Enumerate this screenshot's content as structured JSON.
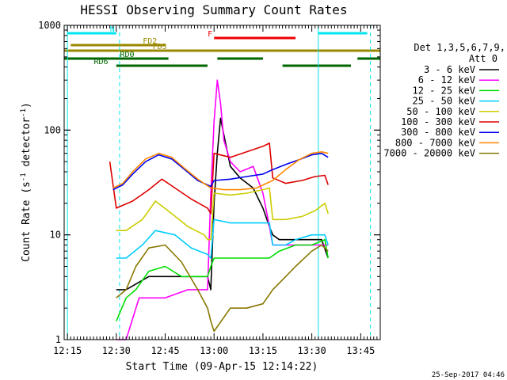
{
  "chart_data": {
    "type": "line",
    "title": "HESSI Observing Summary Count Rates",
    "xlabel": "Start Time (09-Apr-15 12:14:22)",
    "ylabel_main": "Count Rate (s",
    "ylabel_sup1": "-1",
    "ylabel_mid": " detector",
    "ylabel_sup2": "-1",
    "ylabel_end": ")",
    "yscale": "log",
    "xlim": [
      "12:14",
      "13:51"
    ],
    "ylim": [
      1,
      1000
    ],
    "x_ticks": [
      "12:15",
      "12:30",
      "12:45",
      "13:00",
      "13:15",
      "13:30",
      "13:45"
    ],
    "y_ticks": [
      "1",
      "10",
      "100",
      "1000"
    ],
    "footer": "25-Sep-2017 04:46",
    "legend": {
      "header_line1": "Det 1,3,5,6,7,9,",
      "header_line2": "Att 0",
      "entries": [
        "3 - 6 keV",
        "6 - 12 keV",
        "12 - 25 keV",
        "25 - 50 keV",
        "50 - 100 keV",
        "100 - 300 keV",
        "300 - 800 keV",
        "800 - 7000 keV",
        "7000 - 20000 keV"
      ]
    },
    "series": [
      {
        "name": "3 - 6 keV",
        "color": "#000000",
        "x": [
          "12:30",
          "12:33",
          "12:40",
          "12:50",
          "12:58",
          "12:59",
          "13:00",
          "13:01",
          "13:02",
          "13:03",
          "13:05",
          "13:08",
          "13:12",
          "13:15",
          "13:17",
          "13:18",
          "13:20",
          "13:25",
          "13:30",
          "13:33",
          "13:35"
        ],
        "y": [
          3,
          3,
          4,
          4,
          4,
          3,
          20,
          60,
          130,
          90,
          45,
          35,
          28,
          18,
          12,
          10,
          9,
          9,
          9,
          9,
          6
        ]
      },
      {
        "name": "6 - 12 keV",
        "color": "#ff00ff",
        "x": [
          "12:30",
          "12:33",
          "12:37",
          "12:45",
          "12:52",
          "12:58",
          "12:59",
          "13:00",
          "13:01",
          "13:02",
          "13:03",
          "13:05",
          "13:08",
          "13:12",
          "13:15",
          "13:17",
          "13:18",
          "13:25",
          "13:30",
          "13:35"
        ],
        "y": [
          1,
          1,
          2.5,
          2.5,
          3,
          3,
          25,
          120,
          300,
          180,
          80,
          50,
          40,
          45,
          25,
          12,
          8,
          8,
          8,
          8
        ]
      },
      {
        "name": "12 - 25 keV",
        "color": "#00dd00",
        "x": [
          "12:30",
          "12:33",
          "12:36",
          "12:40",
          "12:45",
          "12:50",
          "12:55",
          "12:58",
          "12:59",
          "13:00",
          "13:05",
          "13:10",
          "13:15",
          "13:17",
          "13:20",
          "13:25",
          "13:30",
          "13:34",
          "13:35"
        ],
        "y": [
          1.5,
          2.5,
          3,
          4.5,
          5,
          4,
          4,
          4,
          5,
          6,
          6,
          6,
          6,
          6,
          7,
          8,
          8,
          9,
          6
        ]
      },
      {
        "name": "25 - 50 keV",
        "color": "#00ccff",
        "x": [
          "12:30",
          "12:33",
          "12:38",
          "12:42",
          "12:48",
          "12:53",
          "12:58",
          "12:59",
          "13:00",
          "13:05",
          "13:10",
          "13:15",
          "13:17",
          "13:18",
          "13:22",
          "13:25",
          "13:30",
          "13:34",
          "13:35"
        ],
        "y": [
          6,
          6,
          8,
          11,
          10,
          7.5,
          6.5,
          6,
          14,
          13,
          13,
          13,
          13,
          8,
          8,
          9,
          10,
          10,
          8
        ]
      },
      {
        "name": "50 - 100 keV",
        "color": "#cccc00",
        "x": [
          "12:30",
          "12:33",
          "12:38",
          "12:42",
          "12:47",
          "12:52",
          "12:57",
          "12:58",
          "12:59",
          "13:00",
          "13:05",
          "13:10",
          "13:15",
          "13:17",
          "13:18",
          "13:22",
          "13:27",
          "13:31",
          "13:34",
          "13:35"
        ],
        "y": [
          11,
          11,
          14,
          21,
          16,
          12,
          10,
          9,
          9,
          25,
          24,
          25,
          27,
          28,
          14,
          14,
          15,
          17,
          20,
          16
        ]
      },
      {
        "name": "100 - 300 keV",
        "color": "#dd0000",
        "x": [
          "12:28",
          "12:29",
          "12:30",
          "12:35",
          "12:40",
          "12:44",
          "12:48",
          "12:53",
          "12:58",
          "12:59",
          "13:00",
          "13:05",
          "13:10",
          "13:15",
          "13:17",
          "13:18",
          "13:22",
          "13:27",
          "13:31",
          "13:34",
          "13:35"
        ],
        "y": [
          50,
          30,
          18,
          21,
          27,
          34,
          28,
          22,
          18,
          16,
          60,
          55,
          62,
          70,
          75,
          35,
          31,
          33,
          36,
          37,
          30
        ]
      },
      {
        "name": "300 - 800 keV",
        "color": "#0000ee",
        "x": [
          "12:29",
          "12:32",
          "12:35",
          "12:39",
          "12:43",
          "12:47",
          "12:51",
          "12:55",
          "12:59",
          "13:00",
          "13:05",
          "13:10",
          "13:15",
          "13:18",
          "13:22",
          "13:26",
          "13:30",
          "13:33",
          "13:35"
        ],
        "y": [
          27,
          30,
          38,
          50,
          58,
          53,
          42,
          33,
          29,
          33,
          34,
          36,
          38,
          42,
          47,
          52,
          58,
          60,
          55
        ]
      },
      {
        "name": "800 - 7000 keV",
        "color": "#ff8800",
        "x": [
          "12:29",
          "12:32",
          "12:35",
          "12:39",
          "12:43",
          "12:47",
          "12:51",
          "12:55",
          "12:59",
          "13:03",
          "13:08",
          "13:13",
          "13:18",
          "13:22",
          "13:26",
          "13:30",
          "13:33",
          "13:35"
        ],
        "y": [
          28,
          31,
          40,
          53,
          60,
          55,
          43,
          34,
          28,
          27,
          27,
          28,
          33,
          42,
          52,
          60,
          62,
          60
        ]
      },
      {
        "name": "7000 - 20000 keV",
        "color": "#887700",
        "x": [
          "12:30",
          "12:33",
          "12:36",
          "12:40",
          "12:45",
          "12:50",
          "12:55",
          "12:58",
          "12:59",
          "13:00",
          "13:05",
          "13:10",
          "13:15",
          "13:18",
          "13:22",
          "13:25",
          "13:30",
          "13:33",
          "13:35"
        ],
        "y": [
          2.5,
          3,
          5,
          7.5,
          8,
          5.5,
          3,
          2,
          1.5,
          1.2,
          2,
          2,
          2.2,
          3,
          4,
          5,
          7,
          8,
          7
        ]
      }
    ],
    "flag_bars": [
      {
        "label": "N",
        "color": "#00e5ee",
        "segments": [
          [
            "12:15",
            "12:30"
          ],
          [
            "13:32",
            "13:47"
          ]
        ]
      },
      {
        "label": "F",
        "color": "#ee0000",
        "segments": [
          [
            "13:00",
            "13:25"
          ]
        ]
      },
      {
        "label": "FD2",
        "color": "#998800",
        "segments": [
          [
            "12:16",
            "12:45"
          ]
        ]
      },
      {
        "label": "FD3",
        "color": "#998800",
        "segments": [
          [
            "12:14",
            "13:51"
          ]
        ]
      },
      {
        "label": "RD0",
        "color": "#006600",
        "segments": [
          [
            "12:14",
            "12:46"
          ],
          [
            "13:01",
            "13:15"
          ],
          [
            "13:44",
            "13:51"
          ]
        ]
      },
      {
        "label": "RD6",
        "color": "#006600",
        "segments": [
          [
            "12:30",
            "12:58"
          ],
          [
            "13:21",
            "13:42"
          ]
        ]
      }
    ],
    "vlines": [
      {
        "x": "12:15",
        "color": "#00e5ee",
        "style": "solid"
      },
      {
        "x": "12:31",
        "color": "#00e5ee",
        "style": "dashed"
      },
      {
        "x": "13:32",
        "color": "#00e5ee",
        "style": "solid"
      },
      {
        "x": "13:48",
        "color": "#00e5ee",
        "style": "dashed"
      }
    ]
  }
}
